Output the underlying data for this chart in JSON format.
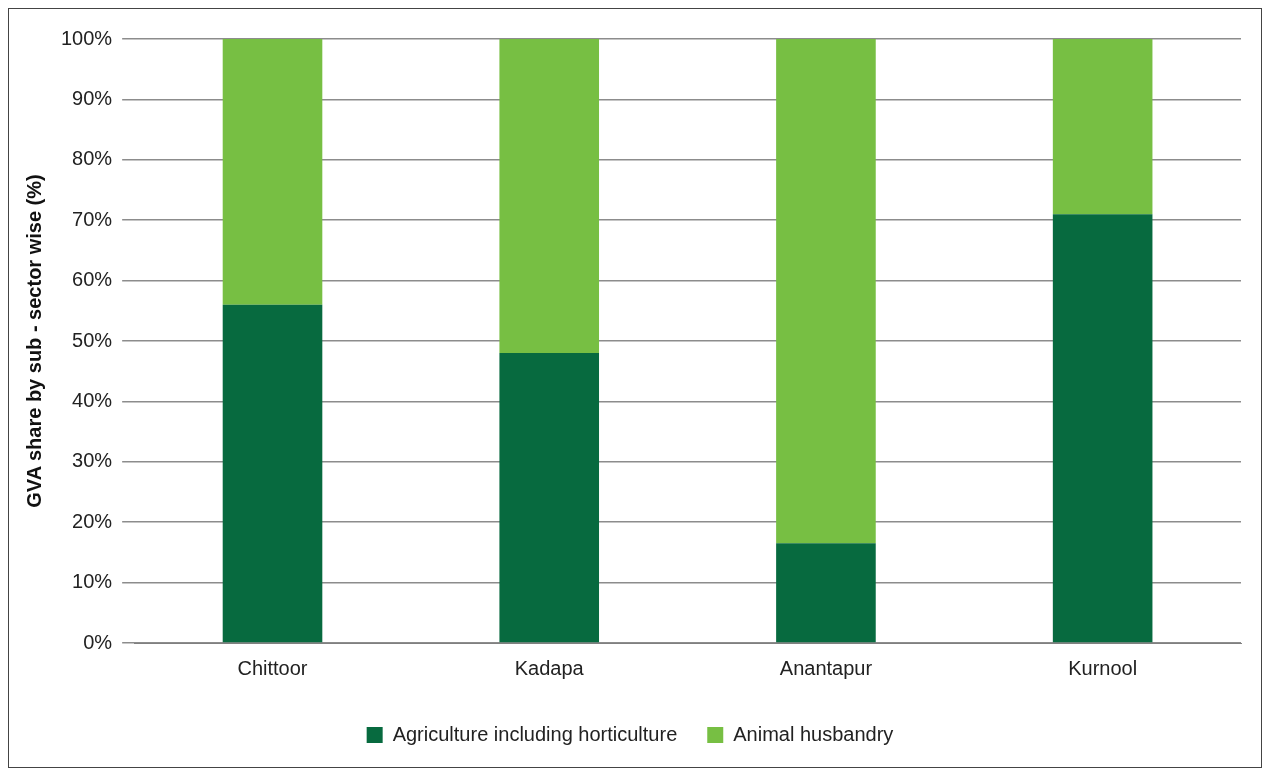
{
  "chart_data": {
    "type": "bar",
    "stacked": true,
    "ylabel": "GVA share by sub - sector wise (%)",
    "categories": [
      "Chittoor",
      "Kadapa",
      "Anantapur",
      "Kurnool"
    ],
    "series": [
      {
        "name": "Agriculture including horticulture",
        "color": "#076a3f",
        "values": [
          56,
          48,
          16.5,
          71
        ]
      },
      {
        "name": "Animal husbandry",
        "color": "#77bf43",
        "values": [
          44,
          52,
          83.5,
          29
        ]
      }
    ],
    "ylim": [
      0,
      100
    ],
    "yticks": [
      {
        "value": 0,
        "label": "0%"
      },
      {
        "value": 10,
        "label": "10%"
      },
      {
        "value": 20,
        "label": "20%"
      },
      {
        "value": 30,
        "label": "30%"
      },
      {
        "value": 40,
        "label": "40%"
      },
      {
        "value": 50,
        "label": "50%"
      },
      {
        "value": 60,
        "label": "60%"
      },
      {
        "value": 70,
        "label": "70%"
      },
      {
        "value": 80,
        "label": "80%"
      },
      {
        "value": 90,
        "label": "90%"
      },
      {
        "value": 100,
        "label": "100%"
      }
    ],
    "grid": "y",
    "legend": "bottom"
  }
}
